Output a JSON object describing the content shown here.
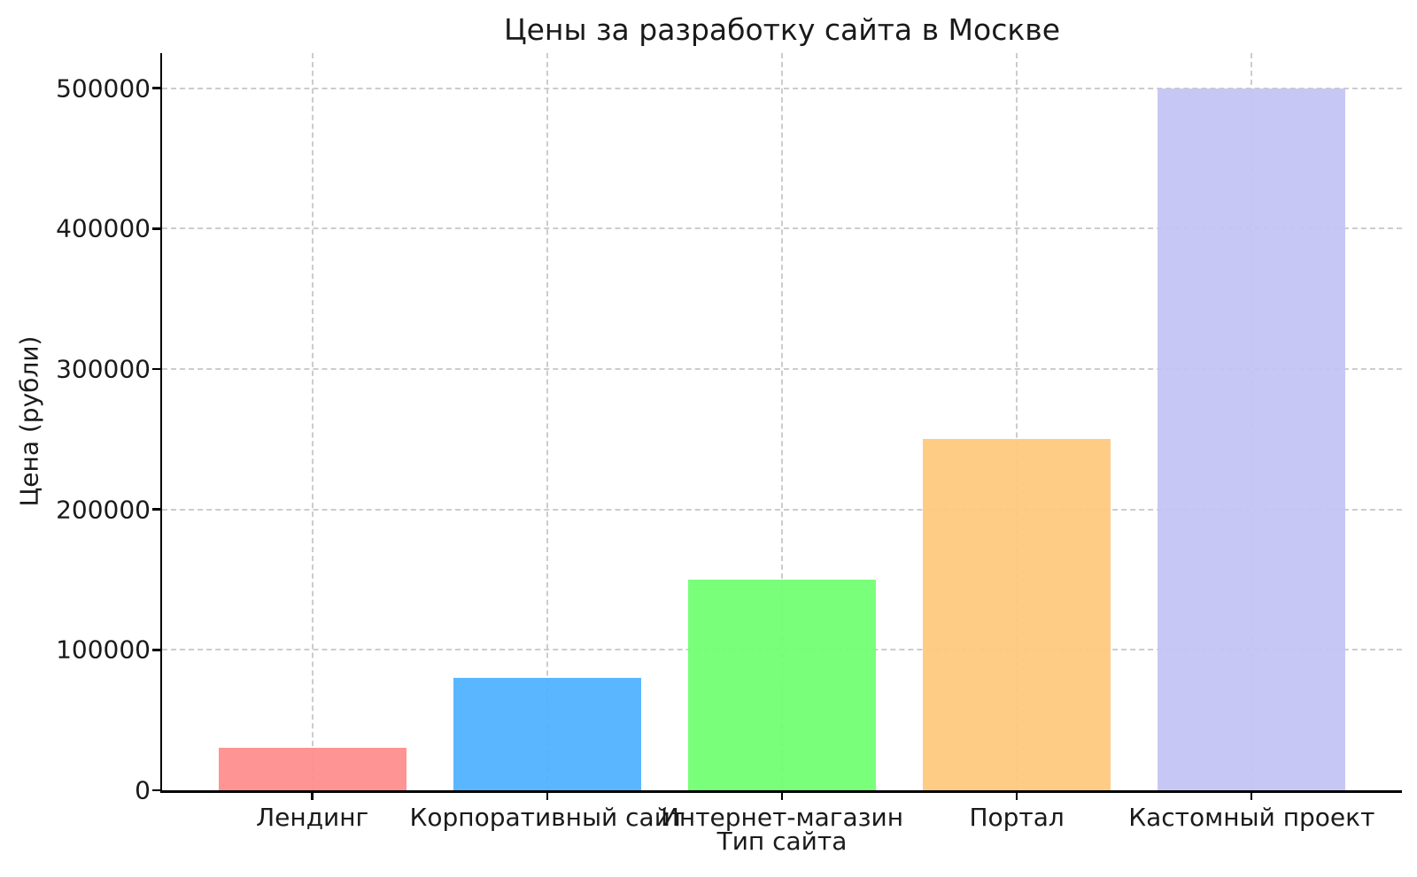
{
  "chart_data": {
    "type": "bar",
    "title": "Цены за разработку сайта в Москве",
    "xlabel": "Тип сайта",
    "ylabel": "Цена (рубли)",
    "categories": [
      "Лендинг",
      "Корпоративный сайт",
      "Интернет-магазин",
      "Портал",
      "Кастомный проект"
    ],
    "values": [
      30000,
      80000,
      150000,
      250000,
      500000
    ],
    "bar_colors": [
      "#ff8c8c",
      "#4db2ff",
      "#70ff70",
      "#ffc87d",
      "#c3c3f5"
    ],
    "ylim": [
      0,
      525000
    ],
    "yticks": [
      0,
      100000,
      200000,
      300000,
      400000,
      500000
    ],
    "ytick_labels": [
      "0",
      "100000",
      "200000",
      "300000",
      "400000",
      "500000"
    ],
    "grid": "dashed-both-axes",
    "grid_color": "#cccccc",
    "legend_position": "none",
    "bar_width_fraction": 0.8
  }
}
